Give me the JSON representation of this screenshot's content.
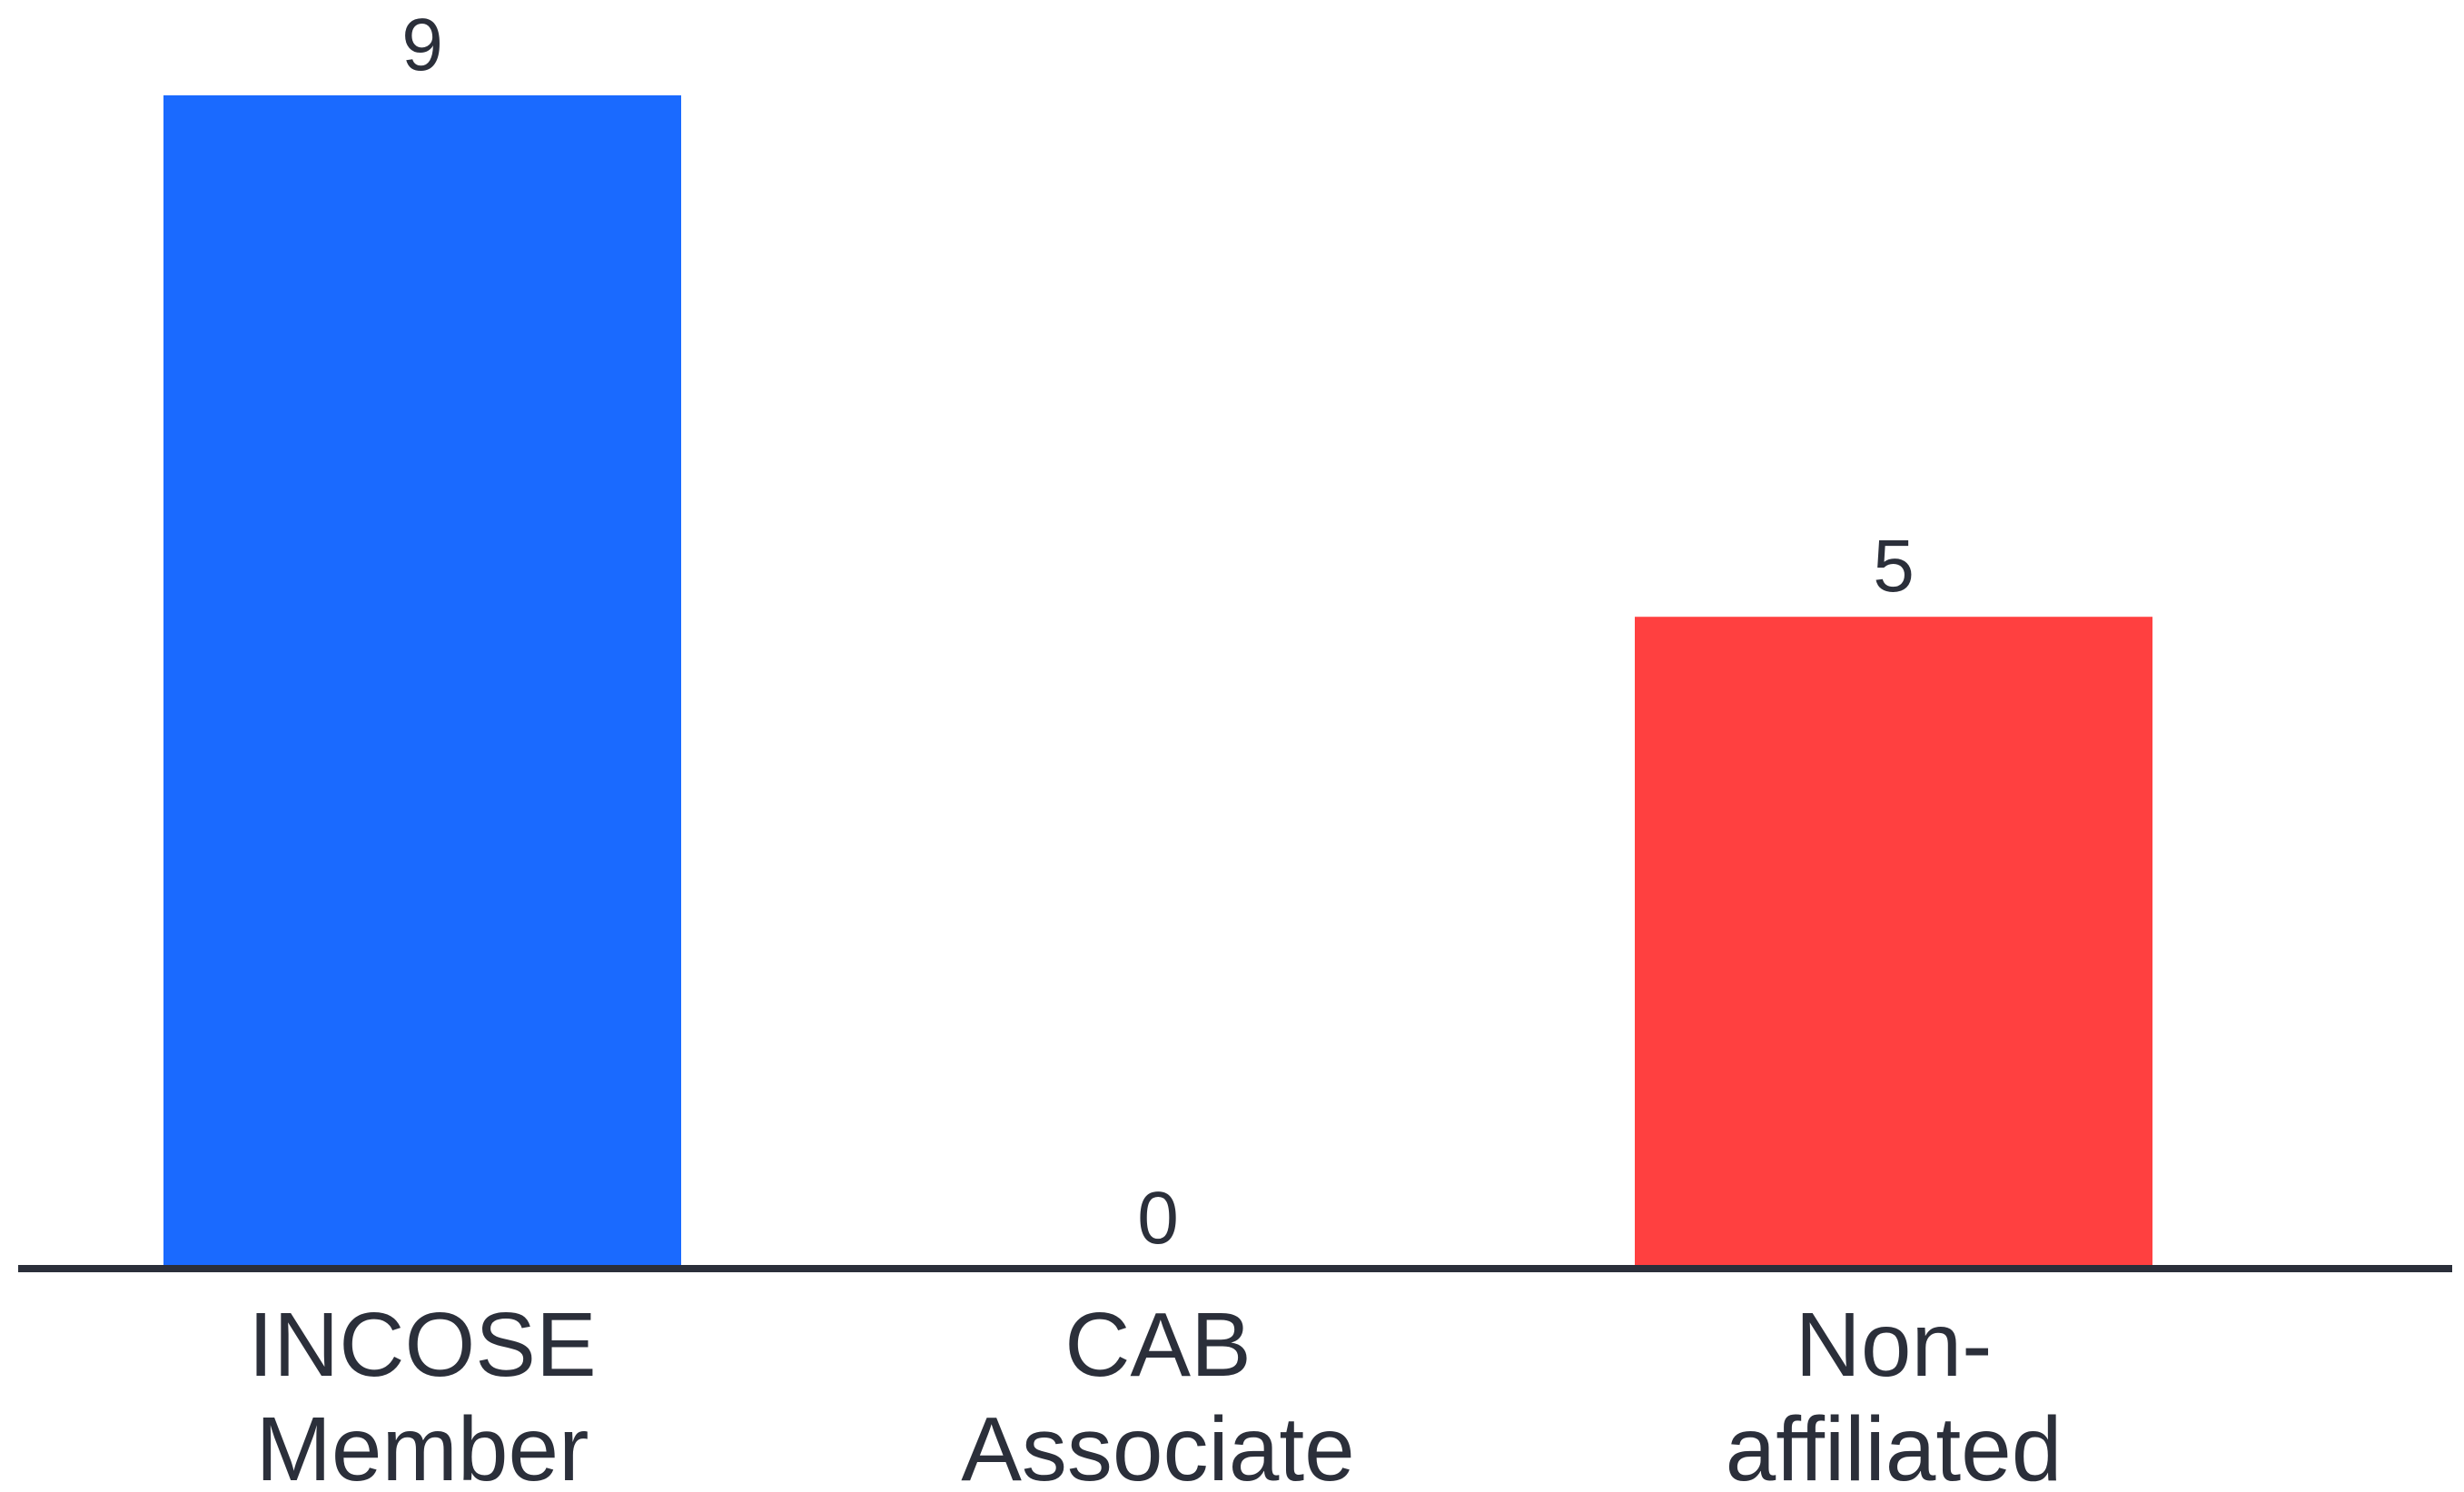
{
  "chart_data": {
    "type": "bar",
    "categories": [
      [
        "INCOSE",
        "Member"
      ],
      [
        "CAB",
        "Associate"
      ],
      [
        "Non-",
        "affiliated"
      ]
    ],
    "values": [
      9,
      0,
      5
    ],
    "value_labels": [
      "9",
      "0",
      "5"
    ],
    "bar_colors": [
      "#1a6aff",
      "#ff4040",
      "#ff4040"
    ],
    "axis_color": "#2b2f3a",
    "ylim": [
      0,
      9
    ],
    "grid": false,
    "legend": "none",
    "title": "",
    "xlabel": "",
    "ylabel": ""
  }
}
